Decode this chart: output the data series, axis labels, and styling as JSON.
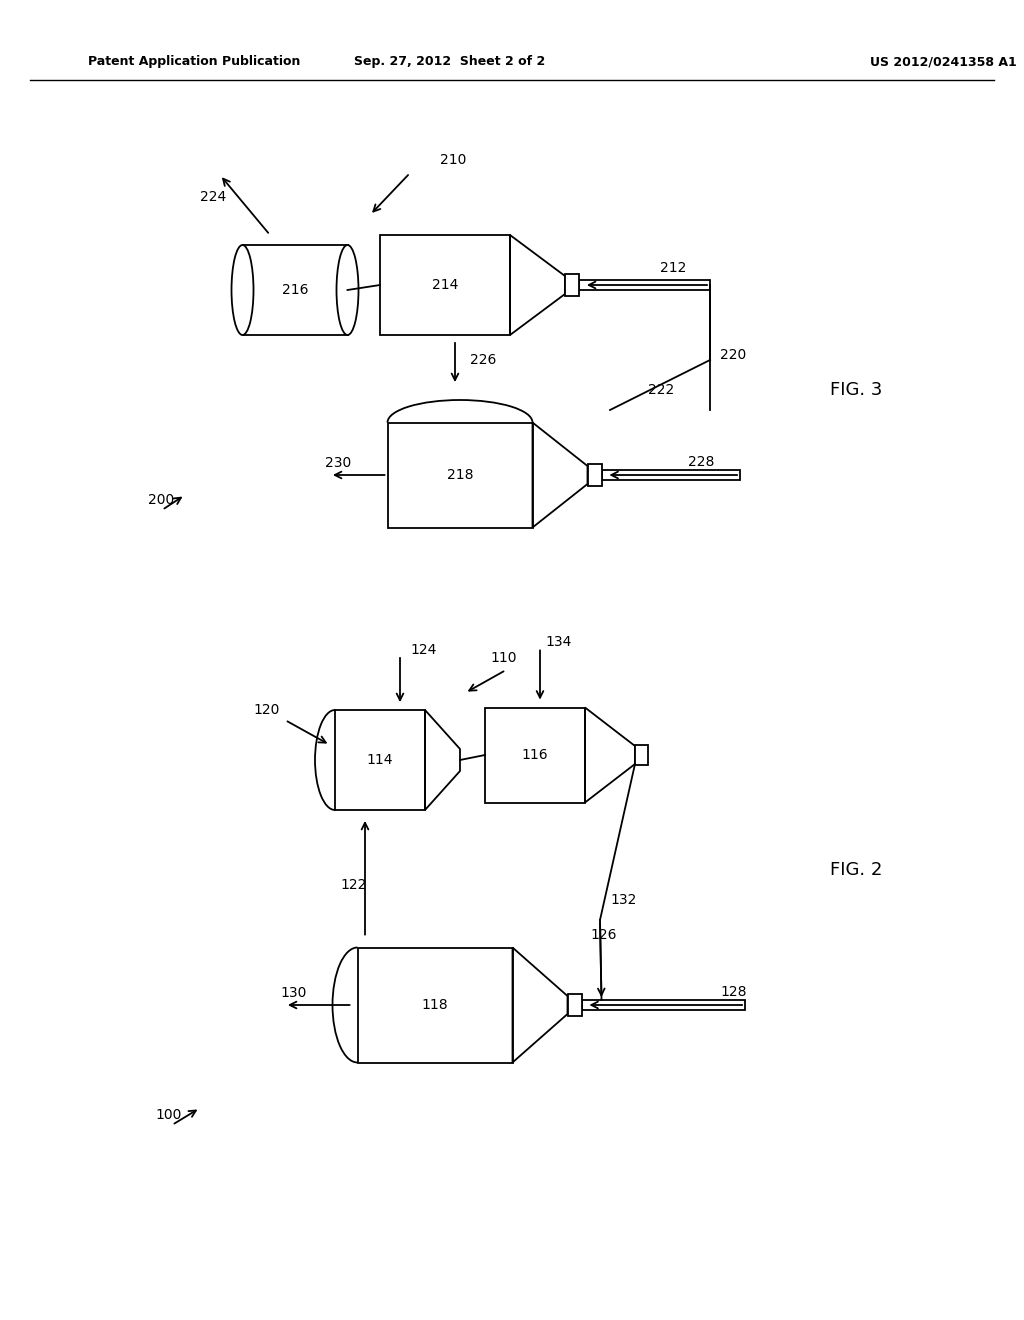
{
  "bg_color": "#ffffff",
  "line_color": "#000000",
  "header_left": "Patent Application Publication",
  "header_center": "Sep. 27, 2012  Sheet 2 of 2",
  "header_right": "US 2012/0241358 A1",
  "fig3_label": "FIG. 3",
  "fig2_label": "FIG. 2"
}
